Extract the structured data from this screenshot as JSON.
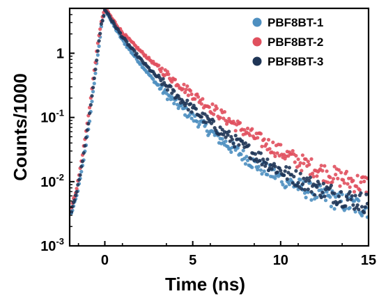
{
  "chart_data": {
    "type": "scatter",
    "title": "",
    "xlabel": "Time (ns)",
    "ylabel": "Counts/1000",
    "xlim": [
      -2,
      15
    ],
    "ylim": [
      0.001,
      5
    ],
    "yscale": "log",
    "grid": false,
    "legend_position": "top-right",
    "x_ticks": [
      {
        "value": 0,
        "label": "0"
      },
      {
        "value": 5,
        "label": "5"
      },
      {
        "value": 10,
        "label": "10"
      },
      {
        "value": 15,
        "label": "15"
      }
    ],
    "y_ticks": [
      {
        "value": 0.001,
        "base": "10",
        "exp": "-3"
      },
      {
        "value": 0.01,
        "base": "10",
        "exp": "-2"
      },
      {
        "value": 0.1,
        "base": "10",
        "exp": "-1"
      },
      {
        "value": 1,
        "base": "1",
        "exp": ""
      }
    ],
    "series": [
      {
        "name": "PBF8BT-1",
        "color": "#4e8fc0",
        "points": [
          [
            -1.9,
            0.0032
          ],
          [
            -1.6,
            0.006
          ],
          [
            -1.4,
            0.011
          ],
          [
            -1.2,
            0.022
          ],
          [
            -1.0,
            0.05
          ],
          [
            -0.8,
            0.12
          ],
          [
            -0.6,
            0.35
          ],
          [
            -0.4,
            0.95
          ],
          [
            -0.2,
            2.5
          ],
          [
            0.0,
            4.6
          ],
          [
            0.2,
            4.0
          ],
          [
            0.4,
            3.0
          ],
          [
            0.7,
            2.2
          ],
          [
            1.0,
            1.6
          ],
          [
            1.5,
            1.05
          ],
          [
            2.0,
            0.7
          ],
          [
            2.5,
            0.47
          ],
          [
            3.0,
            0.32
          ],
          [
            3.5,
            0.23
          ],
          [
            4.0,
            0.17
          ],
          [
            4.5,
            0.13
          ],
          [
            5.0,
            0.1
          ],
          [
            5.5,
            0.078
          ],
          [
            6.0,
            0.06
          ],
          [
            6.5,
            0.047
          ],
          [
            7.0,
            0.037
          ],
          [
            7.5,
            0.03
          ],
          [
            8.0,
            0.024
          ],
          [
            8.5,
            0.019
          ],
          [
            9.0,
            0.016
          ],
          [
            9.5,
            0.0135
          ],
          [
            10.0,
            0.0115
          ],
          [
            10.5,
            0.0098
          ],
          [
            11.0,
            0.0085
          ],
          [
            11.5,
            0.0074
          ],
          [
            12.0,
            0.0066
          ],
          [
            12.5,
            0.0059
          ],
          [
            13.0,
            0.0053
          ],
          [
            13.5,
            0.0048
          ],
          [
            14.0,
            0.0044
          ],
          [
            14.5,
            0.0041
          ],
          [
            15.0,
            0.0039
          ]
        ]
      },
      {
        "name": "PBF8BT-2",
        "color": "#e0505e",
        "points": [
          [
            -1.9,
            0.004
          ],
          [
            -1.6,
            0.008
          ],
          [
            -1.4,
            0.016
          ],
          [
            -1.2,
            0.035
          ],
          [
            -1.0,
            0.08
          ],
          [
            -0.8,
            0.2
          ],
          [
            -0.6,
            0.55
          ],
          [
            -0.4,
            1.4
          ],
          [
            -0.2,
            3.2
          ],
          [
            0.0,
            4.7
          ],
          [
            0.2,
            4.3
          ],
          [
            0.4,
            3.5
          ],
          [
            0.7,
            2.7
          ],
          [
            1.0,
            2.1
          ],
          [
            1.5,
            1.5
          ],
          [
            2.0,
            1.1
          ],
          [
            2.5,
            0.82
          ],
          [
            3.0,
            0.62
          ],
          [
            3.5,
            0.48
          ],
          [
            4.0,
            0.37
          ],
          [
            4.5,
            0.29
          ],
          [
            5.0,
            0.23
          ],
          [
            5.5,
            0.18
          ],
          [
            6.0,
            0.145
          ],
          [
            6.5,
            0.115
          ],
          [
            7.0,
            0.092
          ],
          [
            7.5,
            0.075
          ],
          [
            8.0,
            0.061
          ],
          [
            8.5,
            0.05
          ],
          [
            9.0,
            0.042
          ],
          [
            9.5,
            0.035
          ],
          [
            10.0,
            0.029
          ],
          [
            10.5,
            0.025
          ],
          [
            11.0,
            0.021
          ],
          [
            11.5,
            0.018
          ],
          [
            12.0,
            0.016
          ],
          [
            12.5,
            0.014
          ],
          [
            13.0,
            0.0125
          ],
          [
            13.5,
            0.0112
          ],
          [
            14.0,
            0.0102
          ],
          [
            14.5,
            0.0094
          ],
          [
            15.0,
            0.0088
          ]
        ]
      },
      {
        "name": "PBF8BT-3",
        "color": "#1f3556",
        "points": [
          [
            -1.9,
            0.0035
          ],
          [
            -1.6,
            0.007
          ],
          [
            -1.4,
            0.013
          ],
          [
            -1.2,
            0.027
          ],
          [
            -1.0,
            0.062
          ],
          [
            -0.8,
            0.15
          ],
          [
            -0.6,
            0.42
          ],
          [
            -0.4,
            1.1
          ],
          [
            -0.2,
            2.8
          ],
          [
            0.0,
            4.65
          ],
          [
            0.2,
            4.1
          ],
          [
            0.4,
            3.2
          ],
          [
            0.7,
            2.4
          ],
          [
            1.0,
            1.8
          ],
          [
            1.5,
            1.2
          ],
          [
            2.0,
            0.82
          ],
          [
            2.5,
            0.58
          ],
          [
            3.0,
            0.42
          ],
          [
            3.5,
            0.31
          ],
          [
            4.0,
            0.23
          ],
          [
            4.5,
            0.175
          ],
          [
            5.0,
            0.135
          ],
          [
            5.5,
            0.105
          ],
          [
            6.0,
            0.082
          ],
          [
            6.5,
            0.064
          ],
          [
            7.0,
            0.051
          ],
          [
            7.5,
            0.041
          ],
          [
            8.0,
            0.033
          ],
          [
            8.5,
            0.027
          ],
          [
            9.0,
            0.022
          ],
          [
            9.5,
            0.018
          ],
          [
            10.0,
            0.015
          ],
          [
            10.5,
            0.0128
          ],
          [
            11.0,
            0.011
          ],
          [
            11.5,
            0.0095
          ],
          [
            12.0,
            0.0083
          ],
          [
            12.5,
            0.0073
          ],
          [
            13.0,
            0.0065
          ],
          [
            13.5,
            0.0058
          ],
          [
            14.0,
            0.0053
          ],
          [
            14.5,
            0.0049
          ],
          [
            15.0,
            0.0046
          ]
        ]
      }
    ]
  }
}
